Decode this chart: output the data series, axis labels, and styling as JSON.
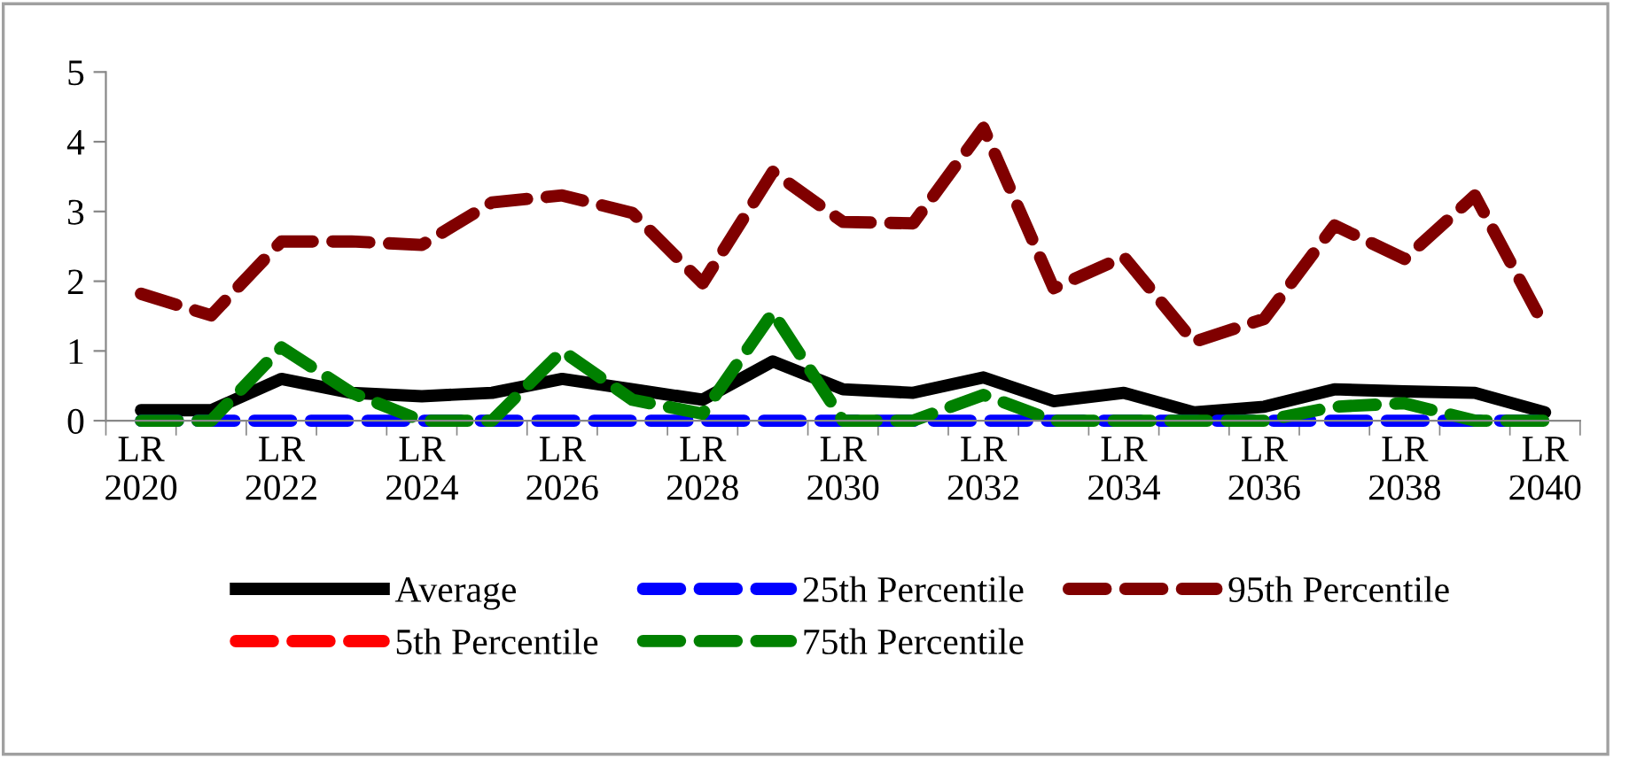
{
  "chart_data": {
    "type": "line",
    "categories": [
      "LR\n2020",
      null,
      "LR\n2022",
      null,
      "LR\n2024",
      null,
      "LR\n2026",
      null,
      "LR\n2028",
      null,
      "LR\n2030",
      null,
      "LR\n2032",
      null,
      "LR\n2034",
      null,
      "LR\n2036",
      null,
      "LR\n2038",
      null,
      "LR\n2040"
    ],
    "ylim": [
      0,
      5
    ],
    "yticks": [
      0,
      1,
      2,
      3,
      4,
      5
    ],
    "grid": false,
    "legend": "bottom",
    "marker": "none",
    "series": [
      {
        "name": "Average",
        "color": "#000000",
        "line_style": "solid",
        "values": [
          0.15,
          0.15,
          0.6,
          0.4,
          0.35,
          0.4,
          0.6,
          0.45,
          0.3,
          0.85,
          0.45,
          0.4,
          0.62,
          0.28,
          0.4,
          0.12,
          0.2,
          0.45,
          0.42,
          0.4,
          0.12
        ]
      },
      {
        "name": "5th Percentile",
        "color": "#ff0000",
        "line_style": "dashed",
        "values": [
          null,
          null,
          null,
          null,
          null,
          null,
          null,
          null,
          null,
          null,
          null,
          null,
          null,
          null,
          null,
          null,
          null,
          null,
          null,
          null,
          null
        ]
      },
      {
        "name": "25th Percentile",
        "color": "#0000ff",
        "line_style": "dashed",
        "values": [
          0,
          0,
          0,
          0,
          0,
          0,
          0,
          0,
          0,
          0,
          0,
          0,
          0,
          0,
          0,
          0,
          0,
          0,
          0,
          0,
          0
        ]
      },
      {
        "name": "75th Percentile",
        "color": "#008000",
        "line_style": "dashed",
        "values": [
          0,
          0,
          1.05,
          0.4,
          0,
          0,
          1.0,
          0.3,
          0.1,
          1.55,
          0,
          0,
          0.37,
          0,
          0,
          0,
          0,
          0.2,
          0.25,
          0,
          0
        ]
      },
      {
        "name": "95th Percentile",
        "color": "#800000",
        "line_style": "dashed",
        "values": [
          1.82,
          1.51,
          2.57,
          2.57,
          2.52,
          3.13,
          3.23,
          2.98,
          1.97,
          3.57,
          2.85,
          2.83,
          4.2,
          1.9,
          2.35,
          1.13,
          1.46,
          2.8,
          2.32,
          3.23,
          1.34
        ]
      }
    ]
  }
}
